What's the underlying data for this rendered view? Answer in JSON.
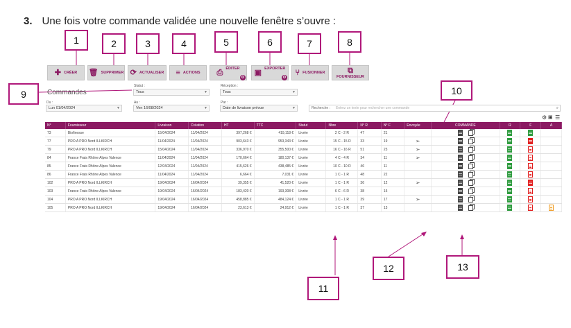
{
  "instruction": {
    "number": "3.",
    "text": "Une fois votre commande validée une nouvelle fenêtre s’ouvre :"
  },
  "toolbar": {
    "creer": "CRÉER",
    "supprimer": "SUPPRIMER",
    "actualiser": "ACTUALISER",
    "actions": "ACTIONS",
    "editer": "ÉDITER",
    "exporter": "EXPORTER",
    "fusionner": "FUSIONNER",
    "fournisseur": "FOURNISSEUR"
  },
  "callouts": [
    "1",
    "2",
    "3",
    "4",
    "5",
    "6",
    "7",
    "8",
    "9",
    "10",
    "11",
    "12",
    "13"
  ],
  "filters": {
    "heading": "Commandes",
    "statut_label": "Statut :",
    "statut_value": "Tous",
    "reception_label": "Réception :",
    "reception_value": "Tous",
    "du_label": "Du :",
    "du_value": "Lun 01/04/2024",
    "au_label": "Au :",
    "au_value": "Ven 16/08/2024",
    "par_label": "Par :",
    "par_value": "Date de livraison prévue",
    "recherche_label": "Recherche :",
    "recherche_placeholder": "Entrez un texte pour rechercher une commande"
  },
  "table": {
    "headers": [
      "N°",
      "Fournisseur",
      "Livraison",
      "Création",
      "HT",
      "TTC",
      "Statut",
      "Nbre",
      "N° R",
      "N° F",
      "Envoyée",
      "COMMANDE",
      "R",
      "F",
      "A"
    ],
    "rows": [
      {
        "n": "73",
        "fournisseur": "Biofinesse",
        "livraison": "15/04/2024",
        "creation": "11/04/2024",
        "ht": "397,268 €",
        "ttc": "419,118 €",
        "statut": "Livrée",
        "nbre": "2 C - 2 R",
        "nr": "47",
        "nf": "21",
        "sent": false,
        "f": "green",
        "a": false
      },
      {
        "n": "77",
        "fournisseur": "PRO A PRO Nord ILLKIRCH",
        "livraison": "11/04/2024",
        "creation": "11/04/2024",
        "ht": "903,643 €",
        "ttc": "953,343 €",
        "statut": "Livrée",
        "nbre": "15 C - 15 R",
        "nr": "33",
        "nf": "19",
        "sent": true,
        "f": "red",
        "a": false
      },
      {
        "n": "79",
        "fournisseur": "PRO A PRO Nord ILLKIRCH",
        "livraison": "15/04/2024",
        "creation": "11/04/2024",
        "ht": "336,970 €",
        "ttc": "355,500 €",
        "statut": "Livrée",
        "nbre": "16 C - 16 R",
        "nr": "51",
        "nf": "23",
        "sent": true,
        "f": "outline",
        "a": false
      },
      {
        "n": "84",
        "fournisseur": "France Frais Rhône Alpes Valence",
        "livraison": "11/04/2024",
        "creation": "11/04/2024",
        "ht": "170,664 €",
        "ttc": "180,137 €",
        "statut": "Livrée",
        "nbre": "4 C - 4 R",
        "nr": "34",
        "nf": "11",
        "sent": true,
        "f": "outline",
        "a": false
      },
      {
        "n": "85",
        "fournisseur": "France Frais Rhône Alpes Valence",
        "livraison": "12/04/2024",
        "creation": "11/04/2024",
        "ht": "415,626 €",
        "ttc": "438,485 €",
        "statut": "Livrée",
        "nbre": "10 C - 10 R",
        "nr": "46",
        "nf": "11",
        "sent": false,
        "f": "outline",
        "a": false
      },
      {
        "n": "86",
        "fournisseur": "France Frais Rhône Alpes Valence",
        "livraison": "11/04/2024",
        "creation": "11/04/2024",
        "ht": "6,664 €",
        "ttc": "7,031 €",
        "statut": "Livrée",
        "nbre": "1 C - 1 R",
        "nr": "48",
        "nf": "22",
        "sent": false,
        "f": "outline",
        "a": false
      },
      {
        "n": "102",
        "fournisseur": "PRO A PRO Nord ILLKIRCH",
        "livraison": "19/04/2024",
        "creation": "16/04/2024",
        "ht": "39,355 €",
        "ttc": "41,520 €",
        "statut": "Livrée",
        "nbre": "1 C - 1 R",
        "nr": "36",
        "nf": "12",
        "sent": true,
        "f": "red",
        "a": false
      },
      {
        "n": "103",
        "fournisseur": "France Frais Rhône Alpes Valence",
        "livraison": "19/04/2024",
        "creation": "16/04/2024",
        "ht": "183,420 €",
        "ttc": "193,308 €",
        "statut": "Livrée",
        "nbre": "6 C - 6 R",
        "nr": "38",
        "nf": "15",
        "sent": false,
        "f": "outline",
        "a": false
      },
      {
        "n": "104",
        "fournisseur": "PRO A PRO Nord ILLKIRCH",
        "livraison": "19/04/2024",
        "creation": "16/04/2024",
        "ht": "458,885 €",
        "ttc": "484,124 €",
        "statut": "Livrée",
        "nbre": "1 C - 1 R",
        "nr": "39",
        "nf": "17",
        "sent": true,
        "f": "outline",
        "a": false
      },
      {
        "n": "105",
        "fournisseur": "PRO A PRO Nord ILLKIRCH",
        "livraison": "19/04/2024",
        "creation": "16/04/2024",
        "ht": "23,613 €",
        "ttc": "24,912 €",
        "statut": "Livrée",
        "nbre": "1 C - 1 R",
        "nr": "37",
        "nf": "13",
        "sent": false,
        "f": "outline",
        "a": true
      }
    ]
  }
}
